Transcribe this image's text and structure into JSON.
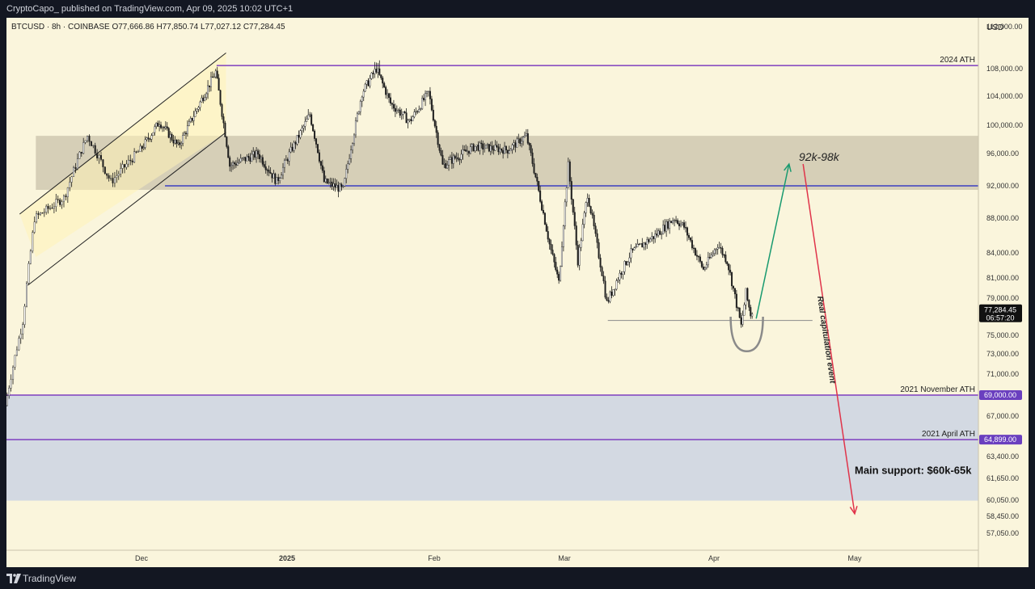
{
  "header": {
    "publish_line": "CryptoCapo_ published on TradingView.com, Apr 09, 2025 10:02 UTC+1"
  },
  "footer": {
    "brand": "TradingView"
  },
  "chart_data": {
    "type": "candlestick",
    "symbol_line": "BTCUSD · 8h · COINBASE",
    "ohlc": {
      "open": "O77,666.86",
      "high": "H77,850.74",
      "low": "L77,027.12",
      "close": "C77,284.45"
    },
    "currency": "USD",
    "last_price": "77,284.45",
    "countdown": "06:57:20",
    "y_ticks": [
      {
        "value": 112000,
        "label": "112,000.00"
      },
      {
        "value": 108000,
        "label": "108,000.00"
      },
      {
        "value": 104000,
        "label": "104,000.00"
      },
      {
        "value": 100000,
        "label": "100,000.00"
      },
      {
        "value": 96000,
        "label": "96,000.00"
      },
      {
        "value": 92000,
        "label": "92,000.00"
      },
      {
        "value": 88000,
        "label": "88,000.00"
      },
      {
        "value": 84000,
        "label": "84,000.00"
      },
      {
        "value": 81000,
        "label": "81,000.00"
      },
      {
        "value": 79000,
        "label": "79,000.00"
      },
      {
        "value": 75000,
        "label": "75,000.00"
      },
      {
        "value": 73000,
        "label": "73,000.00"
      },
      {
        "value": 71000,
        "label": "71,000.00"
      },
      {
        "value": 67000,
        "label": "67,000.00"
      },
      {
        "value": 63400,
        "label": "63,400.00"
      },
      {
        "value": 61650,
        "label": "61,650.00"
      },
      {
        "value": 60050,
        "label": "60,050.00"
      },
      {
        "value": 58450,
        "label": "58,450.00"
      },
      {
        "value": 57050,
        "label": "57,050.00"
      }
    ],
    "x_ticks": [
      {
        "date": "2024-12-01",
        "label": "Dec",
        "bold": false
      },
      {
        "date": "2025-01-01",
        "label": "2025",
        "bold": true
      },
      {
        "date": "2025-02-01",
        "label": "Feb",
        "bold": false
      },
      {
        "date": "2025-03-01",
        "label": "Mar",
        "bold": false
      },
      {
        "date": "2025-04-01",
        "label": "Apr",
        "bold": false
      },
      {
        "date": "2025-05-01",
        "label": "May",
        "bold": false
      }
    ],
    "x_range": [
      "2024-11-08",
      "2025-05-30"
    ],
    "price_waypoints": [
      [
        "2024-11-08",
        68000
      ],
      [
        "2024-11-11",
        76500
      ],
      [
        "2024-11-13",
        88000
      ],
      [
        "2024-11-18",
        90500
      ],
      [
        "2024-11-22",
        98500
      ],
      [
        "2024-11-26",
        92500
      ],
      [
        "2024-12-01",
        96500
      ],
      [
        "2024-12-05",
        100500
      ],
      [
        "2024-12-09",
        97000
      ],
      [
        "2024-12-17",
        107500
      ],
      [
        "2024-12-20",
        94500
      ],
      [
        "2024-12-26",
        96000
      ],
      [
        "2024-12-30",
        92500
      ],
      [
        "2025-01-06",
        101500
      ],
      [
        "2025-01-09",
        92500
      ],
      [
        "2025-01-13",
        91500
      ],
      [
        "2025-01-17",
        104500
      ],
      [
        "2025-01-20",
        108000
      ],
      [
        "2025-01-23",
        103000
      ],
      [
        "2025-01-27",
        100500
      ],
      [
        "2025-01-31",
        104500
      ],
      [
        "2025-02-03",
        94500
      ],
      [
        "2025-02-10",
        97000
      ],
      [
        "2025-02-17",
        96500
      ],
      [
        "2025-02-21",
        98500
      ],
      [
        "2025-02-26",
        85000
      ],
      [
        "2025-02-28",
        80500
      ],
      [
        "2025-03-02",
        94500
      ],
      [
        "2025-03-04",
        83000
      ],
      [
        "2025-03-06",
        91000
      ],
      [
        "2025-03-10",
        78500
      ],
      [
        "2025-03-15",
        84000
      ],
      [
        "2025-03-20",
        86000
      ],
      [
        "2025-03-24",
        88000
      ],
      [
        "2025-03-26",
        87000
      ],
      [
        "2025-03-30",
        82000
      ],
      [
        "2025-04-02",
        85000
      ],
      [
        "2025-04-04",
        83000
      ],
      [
        "2025-04-07",
        76000
      ],
      [
        "2025-04-08",
        79500
      ],
      [
        "2025-04-09",
        77284
      ]
    ],
    "levels": [
      {
        "value": 108300,
        "label": "2024 ATH",
        "start": "2024-12-17",
        "color": "#7e3fbf"
      },
      {
        "value": 92000,
        "label": "",
        "start": "2024-12-06",
        "color": "#3b3fc0"
      },
      {
        "value": 69000,
        "label": "2021 November ATH",
        "start": "2024-11-08",
        "color": "#7e3fbf",
        "badge": "69,000.00"
      },
      {
        "value": 64899,
        "label": "2021 April ATH",
        "start": "2024-11-08",
        "color": "#7e3fbf",
        "badge": "64,899.00"
      },
      {
        "value": 76600,
        "label": "",
        "start": "2025-03-10",
        "end": "2025-04-22",
        "color": "#8a8a8a"
      }
    ],
    "zones": [
      {
        "from": 91500,
        "to": 98500,
        "start": "2024-11-13",
        "color": "#d6cfb7"
      },
      {
        "from": 60000,
        "to": 69000,
        "start": "2024-11-08",
        "color": "#d3d9e2"
      }
    ],
    "channel": {
      "upper": [
        [
          "2024-11-13",
          91500
        ],
        [
          "2024-12-19",
          109500
        ]
      ],
      "lower": [
        [
          "2024-11-13",
          83500
        ],
        [
          "2024-12-19",
          99000
        ]
      ]
    },
    "annotations": [
      {
        "text": "92k-98k",
        "style": "italic"
      },
      {
        "text": "Real capitulation event",
        "style": "bold-italic"
      },
      {
        "text": "Main support: $60k-65k",
        "style": "bold"
      }
    ],
    "green_arrow": [
      [
        "2025-04-10",
        76800
      ],
      [
        "2025-04-17",
        94700
      ]
    ],
    "red_arrow": [
      [
        "2025-04-20",
        94700
      ],
      [
        "2025-05-01",
        58700
      ]
    ],
    "colors": {
      "up": "#ffffff",
      "down": "#1e1e1e",
      "wick": "#1e1e1e",
      "background": "#faf5dc",
      "green_arrow": "#189a6f",
      "red_arrow": "#e0344a"
    }
  }
}
